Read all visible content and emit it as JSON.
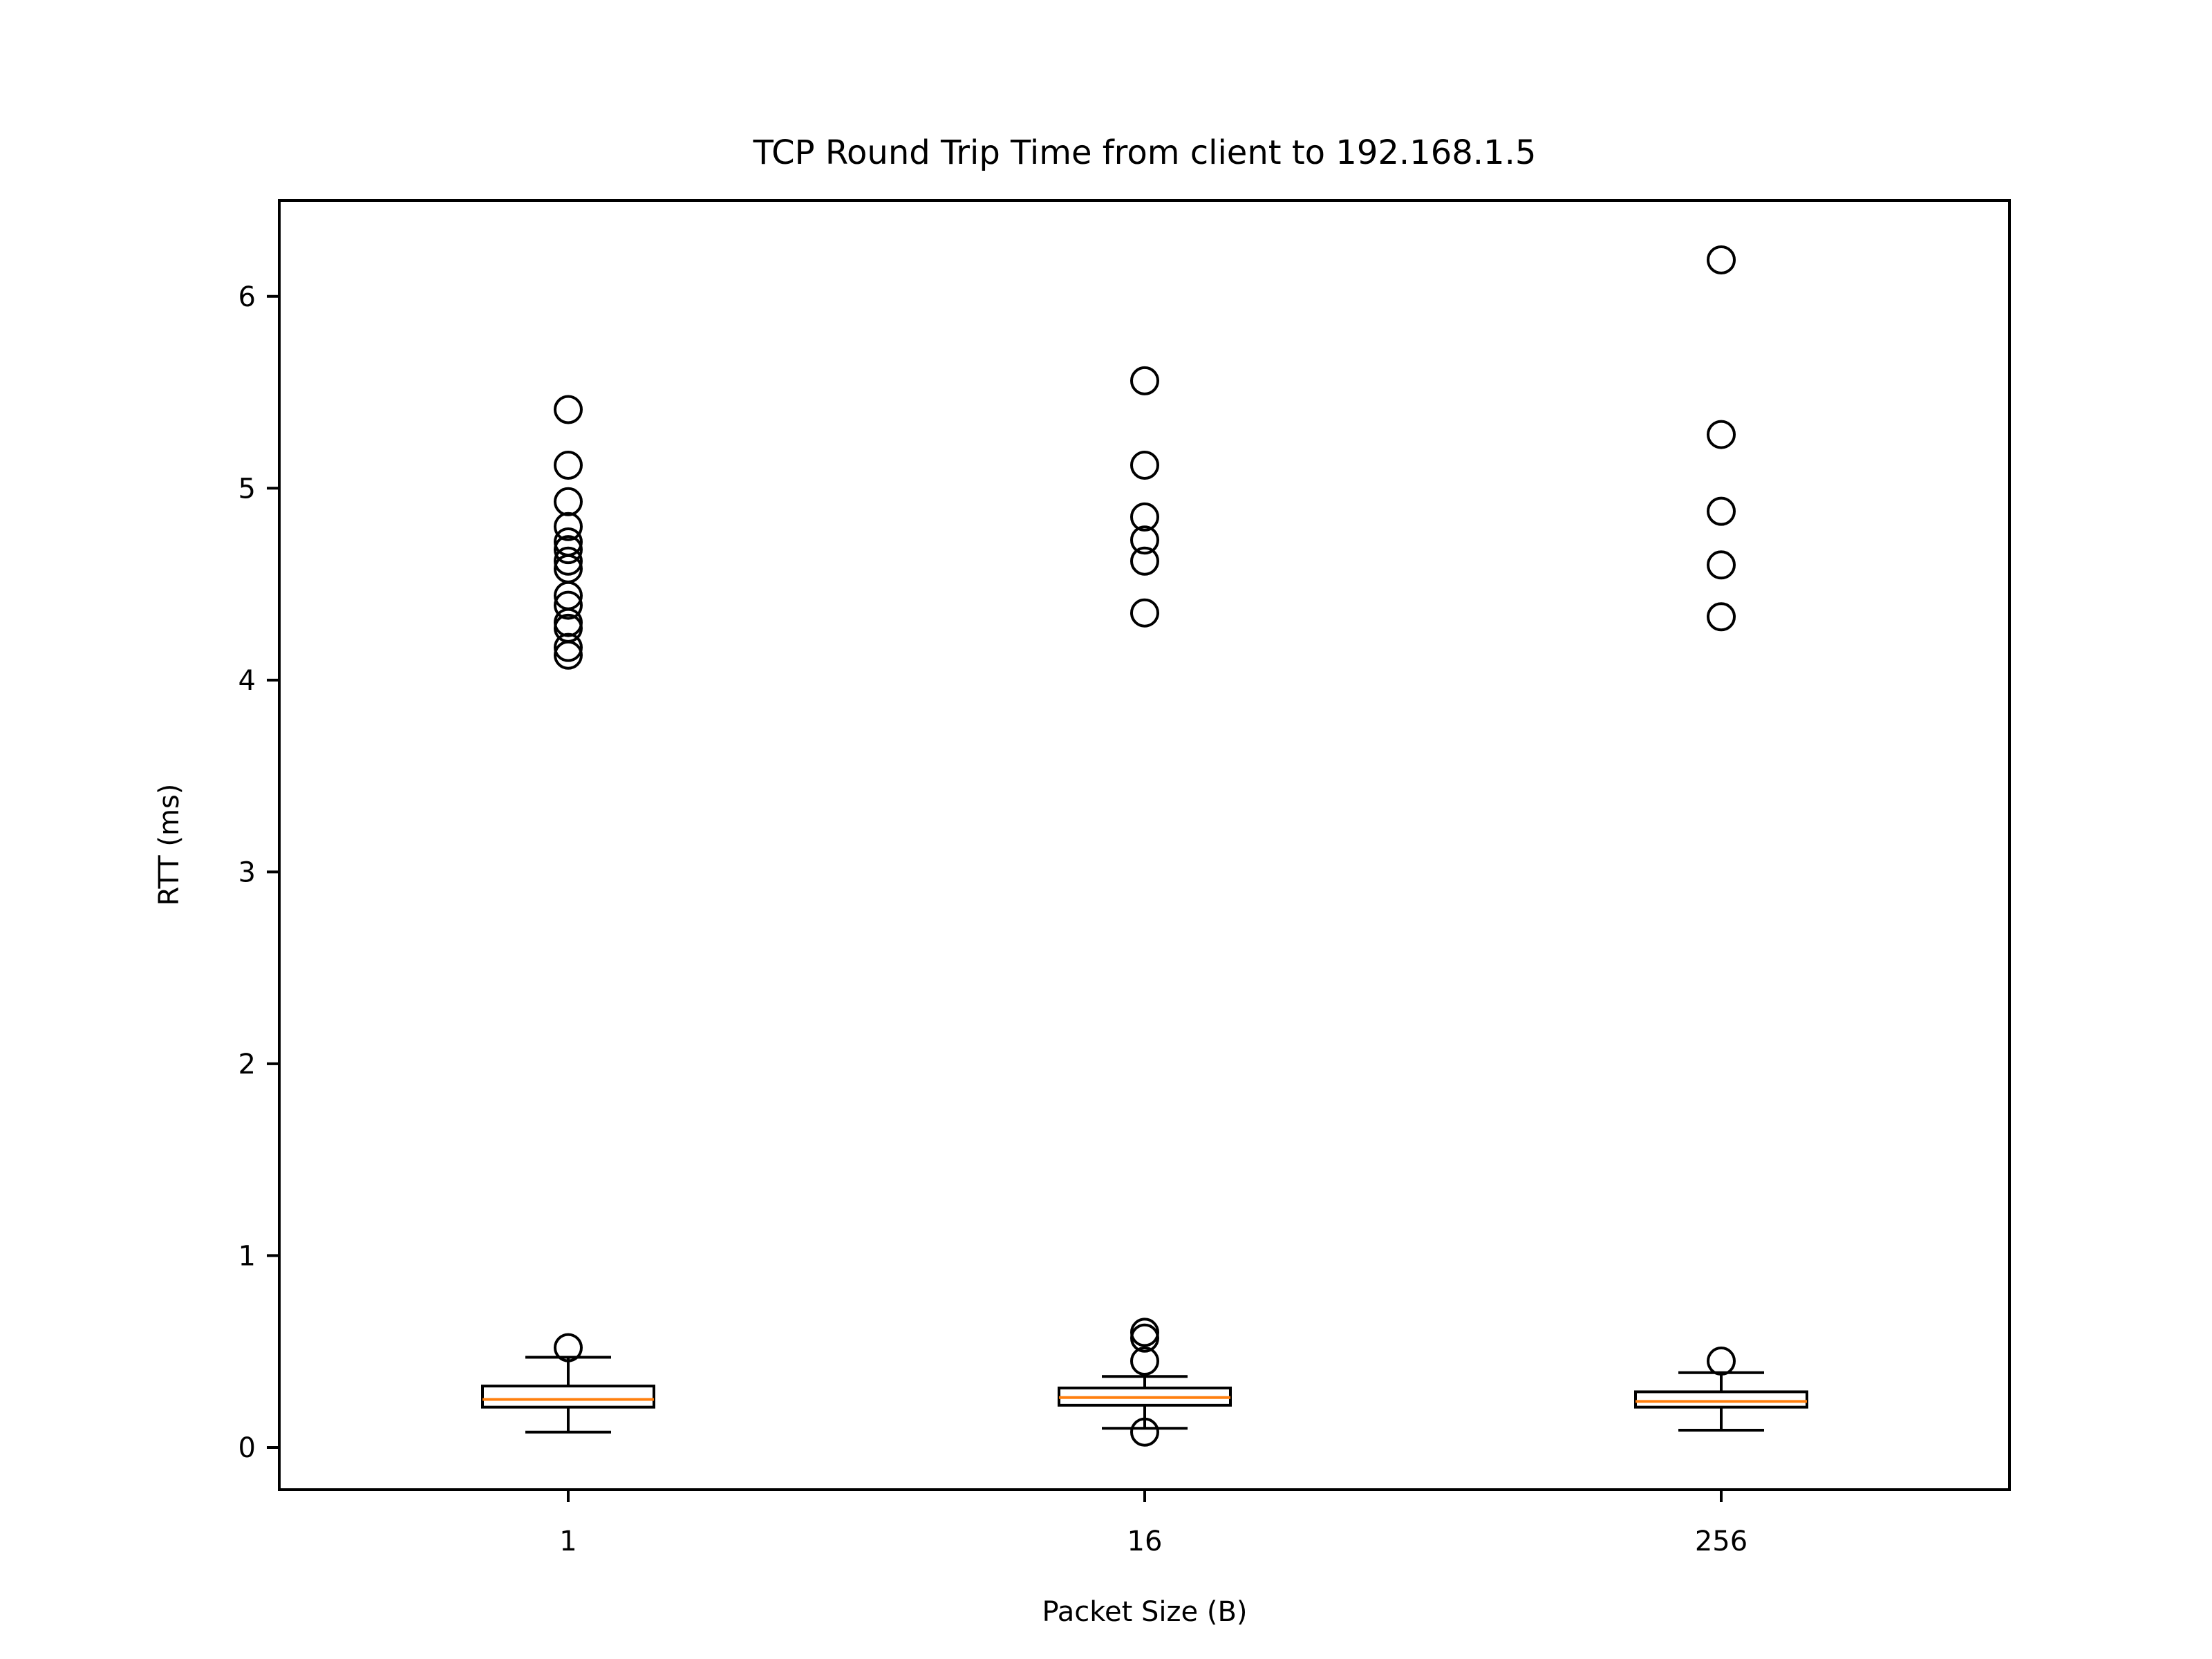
{
  "chart_data": {
    "type": "box",
    "title": "TCP Round Trip Time from client to 192.168.1.5",
    "xlabel": "Packet Size (B)",
    "ylabel": "RTT (ms)",
    "categories": [
      "1",
      "16",
      "256"
    ],
    "y_ticks": [
      0,
      1,
      2,
      3,
      4,
      5,
      6
    ],
    "ylim": [
      -0.22,
      6.5
    ],
    "grid": false,
    "colors": {
      "box": "#000000",
      "median": "#ff7f0e",
      "outlier": "#000000",
      "background": "#ffffff"
    },
    "series": [
      {
        "category": "1",
        "whisker_low": 0.08,
        "q1": 0.21,
        "median": 0.25,
        "q3": 0.32,
        "whisker_high": 0.47,
        "outliers": [
          0.52,
          4.13,
          4.17,
          4.27,
          4.3,
          4.39,
          4.44,
          4.58,
          4.62,
          4.68,
          4.72,
          4.8,
          4.93,
          5.12,
          5.41
        ]
      },
      {
        "category": "16",
        "whisker_low": 0.1,
        "q1": 0.22,
        "median": 0.26,
        "q3": 0.31,
        "whisker_high": 0.37,
        "outliers": [
          0.08,
          0.45,
          0.57,
          0.6,
          4.35,
          4.62,
          4.73,
          4.85,
          5.12,
          5.56
        ]
      },
      {
        "category": "256",
        "whisker_low": 0.09,
        "q1": 0.21,
        "median": 0.24,
        "q3": 0.29,
        "whisker_high": 0.39,
        "outliers": [
          0.45,
          4.33,
          4.6,
          4.88,
          5.28,
          6.19
        ]
      }
    ]
  }
}
